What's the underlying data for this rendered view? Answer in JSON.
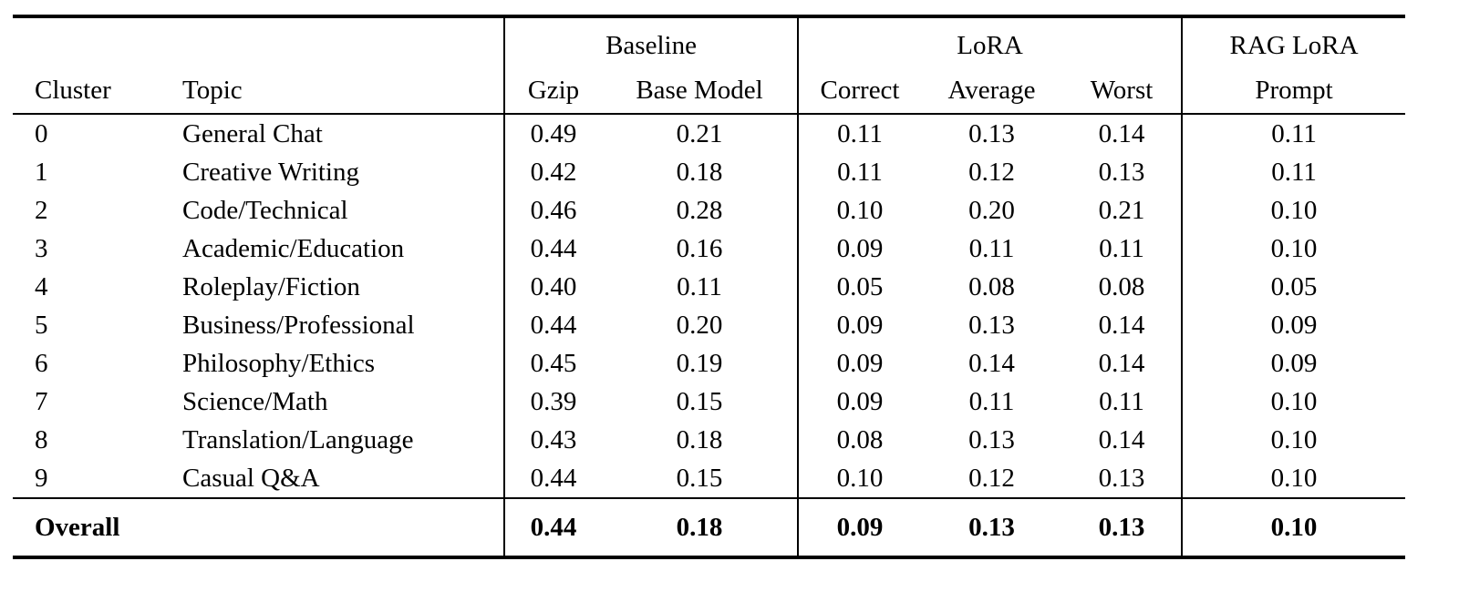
{
  "table": {
    "group_headers": [
      {
        "label": "",
        "span": 2
      },
      {
        "label": "Baseline",
        "span": 2
      },
      {
        "label": "LoRA",
        "span": 3
      },
      {
        "label": "RAG LoRA",
        "span": 1
      }
    ],
    "column_headers": [
      "Cluster",
      "Topic",
      "Gzip",
      "Base Model",
      "Correct",
      "Average",
      "Worst",
      "Prompt"
    ],
    "rows": [
      {
        "cluster": "0",
        "topic": "General Chat",
        "values": [
          "0.49",
          "0.21",
          "0.11",
          "0.13",
          "0.14",
          "0.11"
        ]
      },
      {
        "cluster": "1",
        "topic": "Creative Writing",
        "values": [
          "0.42",
          "0.18",
          "0.11",
          "0.12",
          "0.13",
          "0.11"
        ]
      },
      {
        "cluster": "2",
        "topic": "Code/Technical",
        "values": [
          "0.46",
          "0.28",
          "0.10",
          "0.20",
          "0.21",
          "0.10"
        ]
      },
      {
        "cluster": "3",
        "topic": "Academic/Education",
        "values": [
          "0.44",
          "0.16",
          "0.09",
          "0.11",
          "0.11",
          "0.10"
        ]
      },
      {
        "cluster": "4",
        "topic": "Roleplay/Fiction",
        "values": [
          "0.40",
          "0.11",
          "0.05",
          "0.08",
          "0.08",
          "0.05"
        ]
      },
      {
        "cluster": "5",
        "topic": "Business/Professional",
        "values": [
          "0.44",
          "0.20",
          "0.09",
          "0.13",
          "0.14",
          "0.09"
        ]
      },
      {
        "cluster": "6",
        "topic": "Philosophy/Ethics",
        "values": [
          "0.45",
          "0.19",
          "0.09",
          "0.14",
          "0.14",
          "0.09"
        ]
      },
      {
        "cluster": "7",
        "topic": "Science/Math",
        "values": [
          "0.39",
          "0.15",
          "0.09",
          "0.11",
          "0.11",
          "0.10"
        ]
      },
      {
        "cluster": "8",
        "topic": "Translation/Language",
        "values": [
          "0.43",
          "0.18",
          "0.08",
          "0.13",
          "0.14",
          "0.10"
        ]
      },
      {
        "cluster": "9",
        "topic": "Casual Q&A",
        "values": [
          "0.44",
          "0.15",
          "0.10",
          "0.12",
          "0.13",
          "0.10"
        ]
      }
    ],
    "overall": {
      "label": "Overall",
      "values": [
        "0.44",
        "0.18",
        "0.09",
        "0.13",
        "0.13",
        "0.10"
      ]
    }
  },
  "colors": {
    "text": "#000000",
    "background": "#ffffff",
    "rule": "#000000"
  }
}
